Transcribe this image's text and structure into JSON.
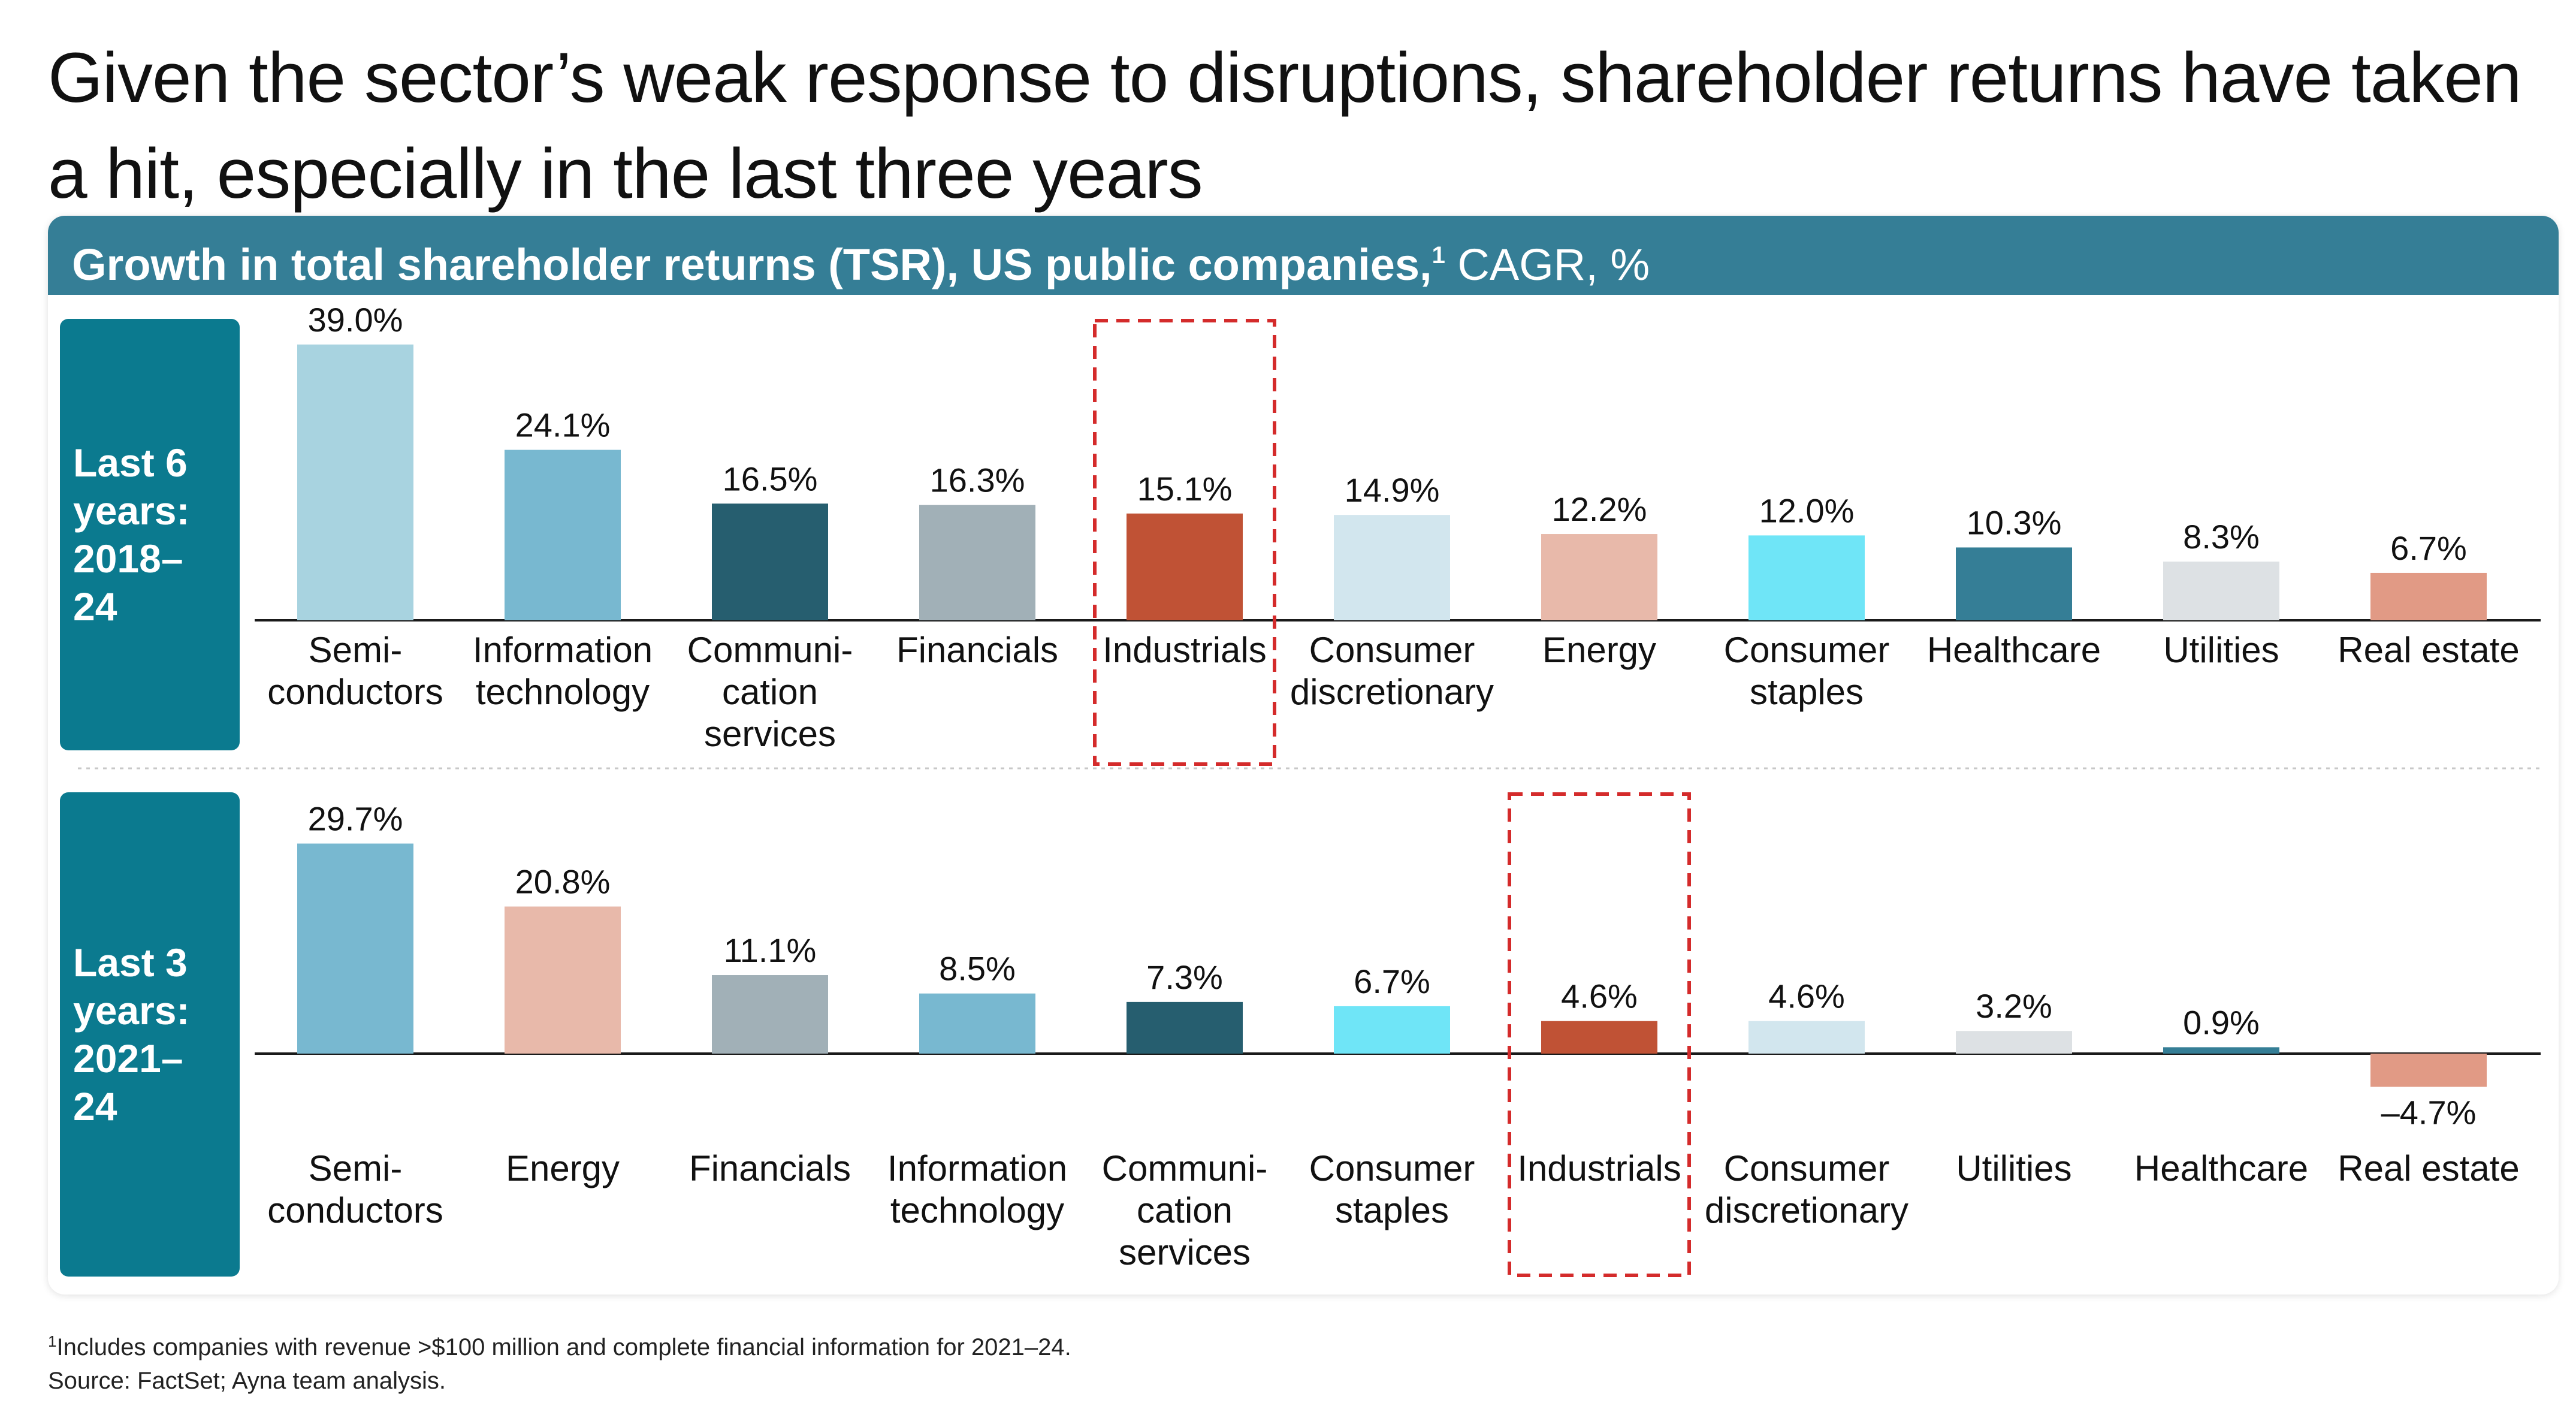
{
  "title": "Given the sector’s weak response to disruptions, shareholder returns have taken a hit, especially in the last three years",
  "header": {
    "bold": "Growth in total shareholder returns (TSR), US public companies,",
    "sup": "1",
    "rest": " CAGR, %"
  },
  "footnote": {
    "sup": "1",
    "line1": "Includes companies with revenue >$100 million and complete financial information for 2021–24.",
    "line2": "Source: FactSet; Ayna team analysis."
  },
  "colors": {
    "Semi-conductors_6": "#a8d3e0",
    "teal_header": "#357e96",
    "row_label": "#0b7a8f",
    "highlight_box": "#d42b2b"
  },
  "chart_data": [
    {
      "type": "bar",
      "row_label": [
        "Last 6",
        "years:",
        "2018–",
        "24"
      ],
      "categories": [
        [
          "Semi-",
          "conductors"
        ],
        [
          "Information",
          "technology"
        ],
        [
          "Communi-",
          "cation",
          "services"
        ],
        [
          "Financials"
        ],
        [
          "Industrials"
        ],
        [
          "Consumer",
          "discretionary"
        ],
        [
          "Energy"
        ],
        [
          "Consumer",
          "staples"
        ],
        [
          "Healthcare"
        ],
        [
          "Utilities"
        ],
        [
          "Real estate"
        ]
      ],
      "values": [
        39.0,
        24.1,
        16.5,
        16.3,
        15.1,
        14.9,
        12.2,
        12.0,
        10.3,
        8.3,
        6.7
      ],
      "labels": [
        "39.0%",
        "24.1%",
        "16.5%",
        "16.3%",
        "15.1%",
        "14.9%",
        "12.2%",
        "12.0%",
        "10.3%",
        "8.3%",
        "6.7%"
      ],
      "colors": [
        "#a8d3e0",
        "#78b8d0",
        "#265e6f",
        "#a1b0b7",
        "#c05235",
        "#d2e6ee",
        "#e8b9aa",
        "#6fe5f7",
        "#357e96",
        "#dde1e4",
        "#e19a85"
      ],
      "highlight": "Industrials"
    },
    {
      "type": "bar",
      "row_label": [
        "Last 3",
        "years:",
        "2021–",
        "24"
      ],
      "categories": [
        [
          "Semi-",
          "conductors"
        ],
        [
          "Energy"
        ],
        [
          "Financials"
        ],
        [
          "Information",
          "technology"
        ],
        [
          "Communi-",
          "cation",
          "services"
        ],
        [
          "Consumer",
          "staples"
        ],
        [
          "Industrials"
        ],
        [
          "Consumer",
          "discretionary"
        ],
        [
          "Utilities"
        ],
        [
          "Healthcare"
        ],
        [
          "Real estate"
        ]
      ],
      "values": [
        29.7,
        20.8,
        11.1,
        8.5,
        7.3,
        6.7,
        4.6,
        4.6,
        3.2,
        0.9,
        -4.7
      ],
      "labels": [
        "29.7%",
        "20.8%",
        "11.1%",
        "8.5%",
        "7.3%",
        "6.7%",
        "4.6%",
        "4.6%",
        "3.2%",
        "0.9%",
        "–4.7%"
      ],
      "colors": [
        "#78b8d0",
        "#e8b9aa",
        "#a1b0b7",
        "#78b8d0",
        "#265e6f",
        "#6fe5f7",
        "#c05235",
        "#d2e6ee",
        "#dde1e4",
        "#357e96",
        "#e19a85"
      ],
      "highlight": "Industrials"
    }
  ]
}
